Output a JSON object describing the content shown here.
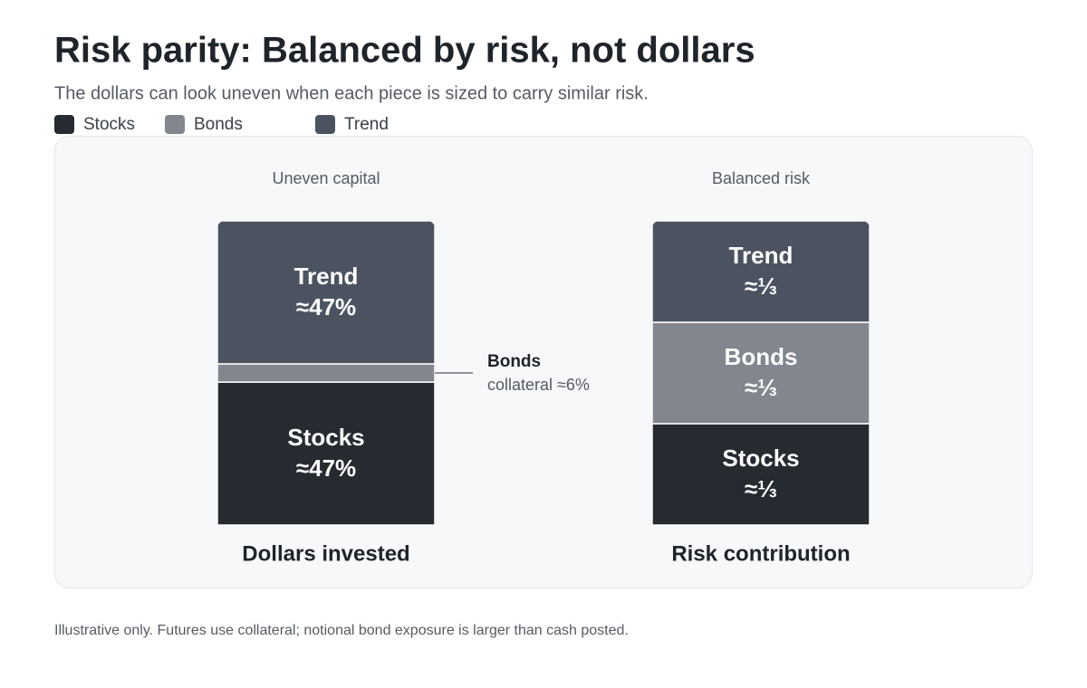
{
  "chart_data": {
    "type": "bar",
    "stacked": true,
    "title": "Risk parity: Balanced by risk, not dollars",
    "subtitle": "The dollars can look uneven when each piece is sized to carry similar risk.",
    "categories": [
      "Dollars invested",
      "Risk contribution"
    ],
    "column_notes": [
      "Uneven capital",
      "Balanced risk"
    ],
    "series": [
      {
        "name": "Stocks",
        "color": "#262a31",
        "values": [
          47,
          33.33
        ],
        "value_labels": [
          "≈47%",
          "≈⅓"
        ]
      },
      {
        "name": "Bonds",
        "color": "#81868f",
        "values": [
          6,
          33.33
        ],
        "value_labels": [
          "collateral ≈6%",
          "≈⅓"
        ]
      },
      {
        "name": "Trend",
        "color": "#4b5361",
        "values": [
          47,
          33.33
        ],
        "value_labels": [
          "≈47%",
          "≈⅓"
        ]
      }
    ],
    "ylim": [
      0,
      100
    ],
    "legend": "top-left",
    "note": "Illustrative only. Futures use collateral; notional bond exposure is larger than cash posted."
  }
}
